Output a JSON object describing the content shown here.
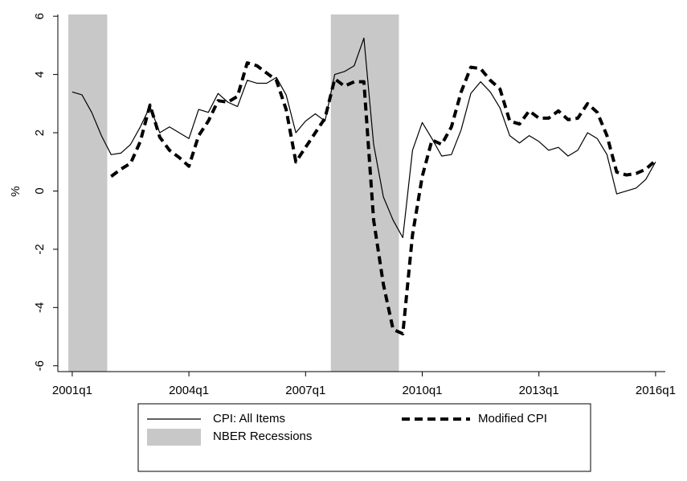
{
  "chart_data": {
    "type": "line",
    "ylabel": "%",
    "x": [
      2001,
      2001.25,
      2001.5,
      2001.75,
      2002,
      2002.25,
      2002.5,
      2002.75,
      2003,
      2003.25,
      2003.5,
      2003.75,
      2004,
      2004.25,
      2004.5,
      2004.75,
      2005,
      2005.25,
      2005.5,
      2005.75,
      2006,
      2006.25,
      2006.5,
      2006.75,
      2007,
      2007.25,
      2007.5,
      2007.75,
      2008,
      2008.25,
      2008.5,
      2008.75,
      2009,
      2009.25,
      2009.5,
      2009.75,
      2010,
      2010.25,
      2010.5,
      2010.75,
      2011,
      2011.25,
      2011.5,
      2011.75,
      2012,
      2012.25,
      2012.5,
      2012.75,
      2013,
      2013.25,
      2013.5,
      2013.75,
      2014,
      2014.25,
      2014.5,
      2014.75,
      2015,
      2015.25,
      2015.5,
      2015.75,
      2016
    ],
    "series": [
      {
        "name": "CPI: All Items",
        "color": "#000000",
        "style": "solid",
        "values": [
          3.4,
          3.3,
          2.7,
          1.9,
          1.25,
          1.3,
          1.6,
          2.2,
          2.9,
          2.0,
          2.2,
          2.0,
          1.8,
          2.8,
          2.7,
          3.35,
          3.05,
          2.9,
          3.8,
          3.7,
          3.7,
          3.9,
          3.3,
          2.0,
          2.4,
          2.65,
          2.4,
          4.0,
          4.1,
          4.3,
          5.25,
          1.6,
          -0.2,
          -1.0,
          -1.6,
          1.4,
          2.35,
          1.8,
          1.2,
          1.25,
          2.1,
          3.35,
          3.75,
          3.4,
          2.85,
          1.9,
          1.65,
          1.9,
          1.7,
          1.4,
          1.5,
          1.2,
          1.4,
          2.0,
          1.8,
          1.25,
          -0.1,
          0.0,
          0.1,
          0.4,
          1.0
        ]
      },
      {
        "name": "Modified CPI",
        "color": "#000000",
        "style": "dashed",
        "values": [
          null,
          null,
          null,
          null,
          0.5,
          0.75,
          0.95,
          1.7,
          2.95,
          1.85,
          1.4,
          1.15,
          0.85,
          1.9,
          2.4,
          3.1,
          3.05,
          3.25,
          4.4,
          4.3,
          4.05,
          3.8,
          2.8,
          1.0,
          1.5,
          2.0,
          2.5,
          3.85,
          3.6,
          3.75,
          3.75,
          -1.0,
          -3.2,
          -4.75,
          -4.9,
          -1.5,
          0.5,
          1.75,
          1.6,
          2.2,
          3.4,
          4.25,
          4.2,
          3.8,
          3.5,
          2.4,
          2.3,
          2.75,
          2.5,
          2.5,
          2.75,
          2.45,
          2.5,
          3.0,
          2.7,
          1.9,
          0.65,
          0.55,
          0.6,
          0.75,
          1.05
        ]
      }
    ],
    "recession_label": "NBER Recessions",
    "recession_color": "#c8c8c8",
    "recessions": [
      [
        2000.9,
        2001.9
      ],
      [
        2007.65,
        2009.4
      ]
    ],
    "xlim": [
      2000.63,
      2016.25
    ],
    "xticks": [
      {
        "value": 2001,
        "label": "2001q1"
      },
      {
        "value": 2004,
        "label": "2004q1"
      },
      {
        "value": 2007,
        "label": "2007q1"
      },
      {
        "value": 2010,
        "label": "2010q1"
      },
      {
        "value": 2013,
        "label": "2013q1"
      },
      {
        "value": 2016,
        "label": "2016q1"
      }
    ],
    "ylim": [
      -6.2,
      6.06
    ],
    "yticks": [
      -6,
      -4,
      -2,
      0,
      2,
      4,
      6
    ],
    "legend": "bottom"
  }
}
